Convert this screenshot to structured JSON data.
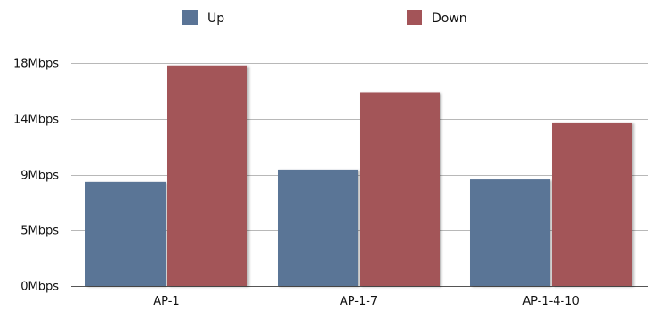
{
  "chart_data": {
    "type": "bar",
    "title": "",
    "xlabel": "",
    "ylabel": "",
    "categories": [
      "AP-1",
      "AP-1-7",
      "AP-1-4-10"
    ],
    "series": [
      {
        "name": "Up",
        "values": [
          8.4,
          9.4,
          8.6
        ],
        "color": "#5a7496"
      },
      {
        "name": "Down",
        "values": [
          17.8,
          15.6,
          13.2
        ],
        "color": "#a35458"
      }
    ],
    "ylim": [
      0,
      18
    ],
    "yticks": [
      {
        "value": 0,
        "label": "0Mbps"
      },
      {
        "value": 4.5,
        "label": "5Mbps"
      },
      {
        "value": 9,
        "label": "9Mbps"
      },
      {
        "value": 13.5,
        "label": "14Mbps"
      },
      {
        "value": 18,
        "label": "18Mbps"
      }
    ],
    "grid": true,
    "legend": "top-center"
  }
}
